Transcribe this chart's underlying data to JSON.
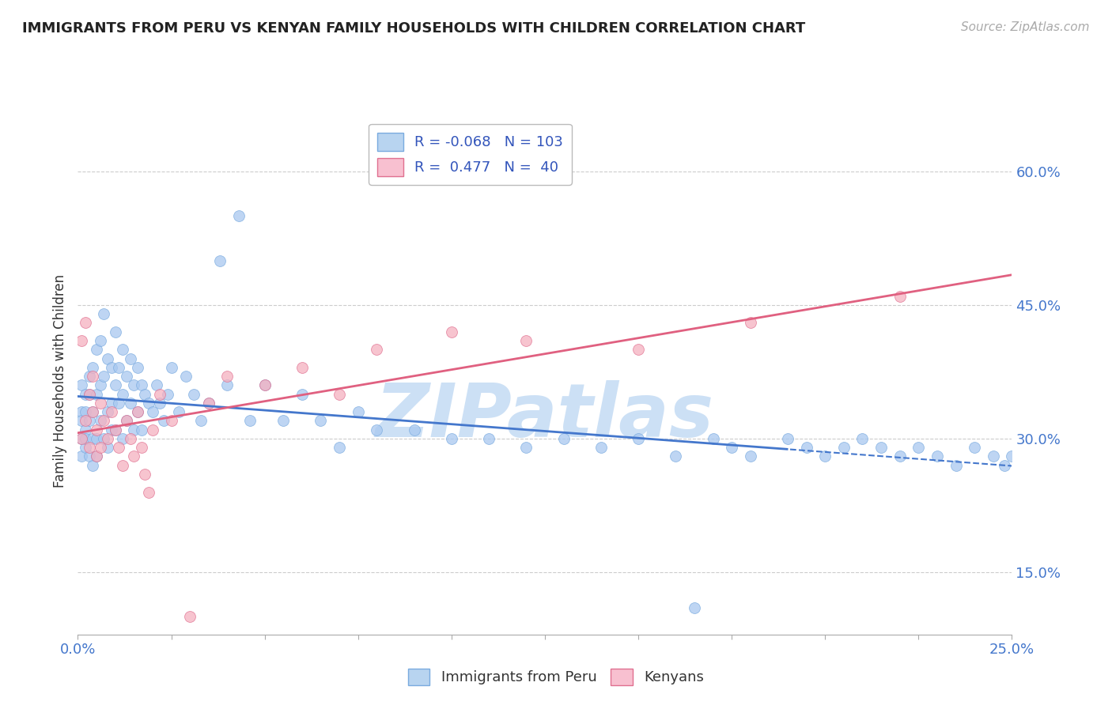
{
  "title": "IMMIGRANTS FROM PERU VS KENYAN FAMILY HOUSEHOLDS WITH CHILDREN CORRELATION CHART",
  "source": "Source: ZipAtlas.com",
  "ylabel": "Family Households with Children",
  "xlim": [
    0.0,
    0.25
  ],
  "ylim": [
    0.08,
    0.65
  ],
  "ytick_vals": [
    0.15,
    0.3,
    0.45,
    0.6
  ],
  "ytick_labels": [
    "15.0%",
    "30.0%",
    "45.0%",
    "60.0%"
  ],
  "xtick_vals": [
    0.0,
    0.25
  ],
  "xtick_labels": [
    "0.0%",
    "25.0%"
  ],
  "grid_color": "#cccccc",
  "background_color": "#ffffff",
  "watermark": "ZIPatlas",
  "watermark_color": "#cce0f5",
  "peru_color": "#a8c8f0",
  "peru_edge": "#7aabdf",
  "peru_trend": "#4477cc",
  "kenya_color": "#f5b0c0",
  "kenya_edge": "#e07090",
  "kenya_trend": "#e06080",
  "peru_R": -0.068,
  "peru_N": 103,
  "kenya_R": 0.477,
  "kenya_N": 40,
  "peru_x": [
    0.001,
    0.001,
    0.001,
    0.001,
    0.001,
    0.002,
    0.002,
    0.002,
    0.002,
    0.002,
    0.003,
    0.003,
    0.003,
    0.003,
    0.004,
    0.004,
    0.004,
    0.004,
    0.005,
    0.005,
    0.005,
    0.005,
    0.006,
    0.006,
    0.006,
    0.007,
    0.007,
    0.007,
    0.008,
    0.008,
    0.008,
    0.009,
    0.009,
    0.009,
    0.01,
    0.01,
    0.01,
    0.011,
    0.011,
    0.012,
    0.012,
    0.012,
    0.013,
    0.013,
    0.014,
    0.014,
    0.015,
    0.015,
    0.016,
    0.016,
    0.017,
    0.017,
    0.018,
    0.019,
    0.02,
    0.021,
    0.022,
    0.023,
    0.024,
    0.025,
    0.027,
    0.029,
    0.031,
    0.033,
    0.035,
    0.038,
    0.04,
    0.043,
    0.046,
    0.05,
    0.055,
    0.06,
    0.065,
    0.07,
    0.075,
    0.08,
    0.09,
    0.1,
    0.11,
    0.12,
    0.13,
    0.14,
    0.15,
    0.16,
    0.165,
    0.17,
    0.175,
    0.18,
    0.19,
    0.195,
    0.2,
    0.205,
    0.21,
    0.215,
    0.22,
    0.225,
    0.23,
    0.235,
    0.24,
    0.245,
    0.248,
    0.25,
    0.252
  ],
  "peru_y": [
    0.33,
    0.3,
    0.36,
    0.28,
    0.32,
    0.35,
    0.31,
    0.29,
    0.33,
    0.3,
    0.37,
    0.32,
    0.28,
    0.35,
    0.38,
    0.33,
    0.3,
    0.27,
    0.4,
    0.35,
    0.3,
    0.28,
    0.41,
    0.36,
    0.32,
    0.44,
    0.37,
    0.3,
    0.39,
    0.33,
    0.29,
    0.38,
    0.34,
    0.31,
    0.42,
    0.36,
    0.31,
    0.38,
    0.34,
    0.4,
    0.35,
    0.3,
    0.37,
    0.32,
    0.39,
    0.34,
    0.36,
    0.31,
    0.38,
    0.33,
    0.36,
    0.31,
    0.35,
    0.34,
    0.33,
    0.36,
    0.34,
    0.32,
    0.35,
    0.38,
    0.33,
    0.37,
    0.35,
    0.32,
    0.34,
    0.5,
    0.36,
    0.55,
    0.32,
    0.36,
    0.32,
    0.35,
    0.32,
    0.29,
    0.33,
    0.31,
    0.31,
    0.3,
    0.3,
    0.29,
    0.3,
    0.29,
    0.3,
    0.28,
    0.11,
    0.3,
    0.29,
    0.28,
    0.3,
    0.29,
    0.28,
    0.29,
    0.3,
    0.29,
    0.28,
    0.29,
    0.28,
    0.27,
    0.29,
    0.28,
    0.27,
    0.28,
    0.29
  ],
  "kenya_x": [
    0.001,
    0.001,
    0.002,
    0.002,
    0.003,
    0.003,
    0.004,
    0.004,
    0.005,
    0.005,
    0.006,
    0.006,
    0.007,
    0.008,
    0.009,
    0.01,
    0.011,
    0.012,
    0.013,
    0.014,
    0.015,
    0.016,
    0.017,
    0.018,
    0.019,
    0.02,
    0.022,
    0.025,
    0.03,
    0.035,
    0.04,
    0.05,
    0.06,
    0.07,
    0.08,
    0.1,
    0.12,
    0.15,
    0.18,
    0.22
  ],
  "kenya_y": [
    0.3,
    0.41,
    0.32,
    0.43,
    0.35,
    0.29,
    0.37,
    0.33,
    0.31,
    0.28,
    0.34,
    0.29,
    0.32,
    0.3,
    0.33,
    0.31,
    0.29,
    0.27,
    0.32,
    0.3,
    0.28,
    0.33,
    0.29,
    0.26,
    0.24,
    0.31,
    0.35,
    0.32,
    0.1,
    0.34,
    0.37,
    0.36,
    0.38,
    0.35,
    0.4,
    0.42,
    0.41,
    0.4,
    0.43,
    0.46
  ]
}
